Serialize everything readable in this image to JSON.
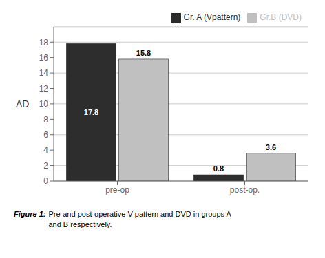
{
  "chart_data": {
    "type": "bar",
    "categories": [
      "pre-op",
      "post-op."
    ],
    "series": [
      {
        "name": "Gr. A (Vpattern)",
        "color": "#2d2d2d",
        "values": [
          17.8,
          0.8
        ]
      },
      {
        "name": "Gr.B (DVD)",
        "color": "#c0c0c0",
        "values": [
          15.8,
          3.6
        ]
      }
    ],
    "y_label": "ΔD",
    "ylim": [
      0,
      20
    ],
    "yticks": [
      0,
      2,
      4,
      6,
      8,
      10,
      12,
      14,
      16,
      18
    ],
    "grid": true,
    "legend": "upper right",
    "data_labels": true,
    "annotations": [
      "Figure 1:",
      "Pre-and post-operative V pattern and DVD in groups A\nand B respectively."
    ]
  }
}
